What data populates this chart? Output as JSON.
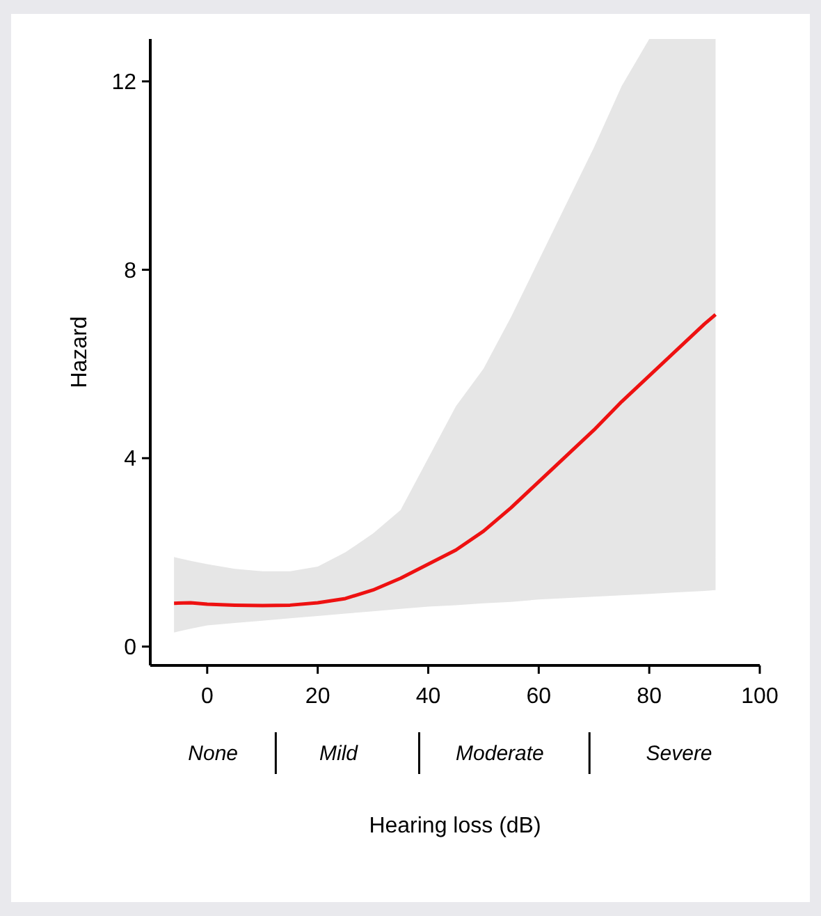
{
  "chart_data": {
    "type": "line",
    "xlabel": "Hearing loss (dB)",
    "ylabel": "Hazard",
    "x": [
      -6,
      -3,
      0,
      5,
      10,
      15,
      20,
      25,
      30,
      35,
      40,
      45,
      50,
      55,
      60,
      65,
      70,
      75,
      80,
      85,
      90,
      92
    ],
    "series": [
      {
        "color": "#ee1111",
        "values": [
          0.92,
          0.93,
          0.9,
          0.88,
          0.87,
          0.88,
          0.93,
          1.02,
          1.2,
          1.45,
          1.75,
          2.05,
          2.45,
          2.95,
          3.5,
          4.05,
          4.6,
          5.2,
          5.75,
          6.3,
          6.85,
          7.05
        ],
        "lower": [
          0.3,
          0.38,
          0.45,
          0.5,
          0.55,
          0.6,
          0.65,
          0.7,
          0.75,
          0.8,
          0.85,
          0.88,
          0.92,
          0.95,
          1.0,
          1.03,
          1.06,
          1.09,
          1.12,
          1.15,
          1.18,
          1.2
        ],
        "upper": [
          1.9,
          1.82,
          1.75,
          1.65,
          1.6,
          1.6,
          1.7,
          2.0,
          2.4,
          2.9,
          4.0,
          5.1,
          5.9,
          7.0,
          8.2,
          9.4,
          10.6,
          11.9,
          12.9,
          12.9,
          12.9,
          12.9
        ]
      }
    ],
    "xlim": [
      -10.3,
      100
    ],
    "xticks": [
      0,
      20,
      40,
      60,
      80,
      100
    ],
    "ylim": [
      -0.4,
      12.9
    ],
    "yticks": [
      0,
      4,
      8,
      12
    ],
    "annotations": [
      "None",
      "Mild",
      "Moderate",
      "Severe"
    ],
    "grid": false,
    "marker": "none",
    "line_style": "solid"
  }
}
